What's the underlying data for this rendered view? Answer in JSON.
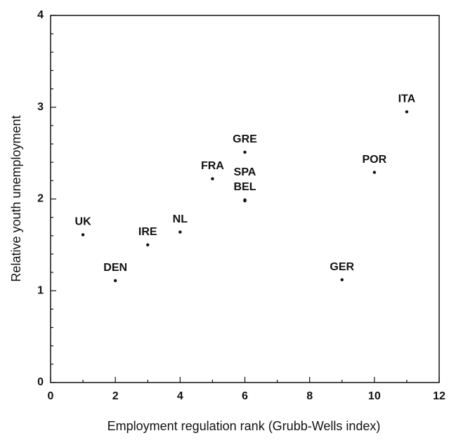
{
  "chart_data": {
    "type": "scatter",
    "x_label": "Employment regulation rank (Grubb-Wells index)",
    "y_label": "Relative youth unemployment",
    "series": [
      {
        "color": "#111111",
        "labels": [
          "UK",
          "DEN",
          "IRE",
          "NL",
          "FRA",
          "GRE",
          "BEL",
          "SPA",
          "GER",
          "POR",
          "ITA"
        ],
        "x": [
          1,
          2,
          3,
          4,
          5,
          6,
          6,
          6,
          9,
          10,
          11
        ],
        "values": [
          1.61,
          1.11,
          1.5,
          1.64,
          2.22,
          2.51,
          1.99,
          1.98,
          1.12,
          2.29,
          2.95
        ]
      }
    ],
    "xlim": [
      0,
      12
    ],
    "xticks": [
      0,
      2,
      4,
      6,
      8,
      10,
      12
    ],
    "ylim": [
      0,
      4
    ],
    "yticks": [
      0,
      1,
      2,
      3,
      4
    ]
  }
}
